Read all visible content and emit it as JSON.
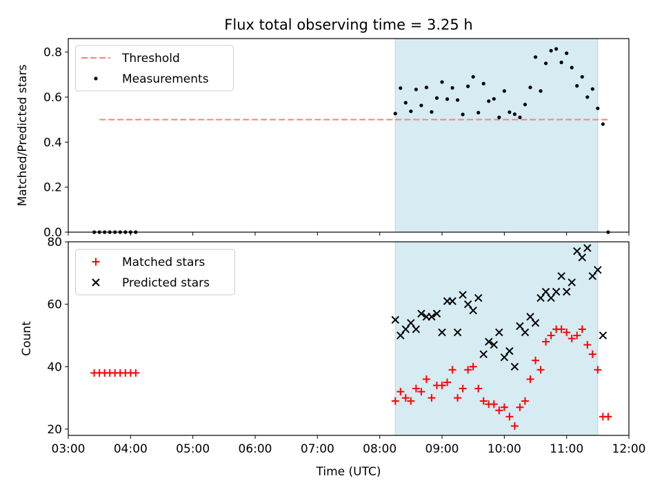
{
  "title": "Flux total observing time = 3.25 h",
  "colors": {
    "threshold": "#ff7f7f",
    "measurements": "#000000",
    "matched": "#ff0000",
    "predicted": "#000000",
    "shade": "#add8e6"
  },
  "chart_data": [
    {
      "type": "scatter",
      "ylabel": "Matched/Predicted stars",
      "xlim": [
        "03:00",
        "12:00"
      ],
      "ylim": [
        0,
        0.86
      ],
      "yticks": [
        "0.0",
        "0.2",
        "0.4",
        "0.6",
        "0.8"
      ],
      "shaded_span": [
        "08:15",
        "11:30"
      ],
      "legend_placement": "upper-left",
      "series": [
        {
          "name": "Threshold",
          "style": "dashed-line",
          "x": [
            "03:30",
            "11:40"
          ],
          "y": [
            0.5,
            0.5
          ]
        },
        {
          "name": "Measurements",
          "style": "dot",
          "points": [
            [
              "03:25",
              0
            ],
            [
              "03:30",
              0
            ],
            [
              "03:35",
              0
            ],
            [
              "03:40",
              0
            ],
            [
              "03:45",
              0
            ],
            [
              "03:50",
              0
            ],
            [
              "03:55",
              0
            ],
            [
              "04:00",
              0
            ],
            [
              "04:05",
              0
            ],
            [
              "08:15",
              0.527
            ],
            [
              "08:20",
              0.64
            ],
            [
              "08:25",
              0.575
            ],
            [
              "08:30",
              0.537
            ],
            [
              "08:35",
              0.634
            ],
            [
              "08:40",
              0.563
            ],
            [
              "08:45",
              0.643
            ],
            [
              "08:50",
              0.534
            ],
            [
              "08:55",
              0.596
            ],
            [
              "09:00",
              0.667
            ],
            [
              "09:05",
              0.591
            ],
            [
              "09:10",
              0.641
            ],
            [
              "09:15",
              0.587
            ],
            [
              "09:20",
              0.523
            ],
            [
              "09:25",
              0.648
            ],
            [
              "09:30",
              0.69
            ],
            [
              "09:35",
              0.531
            ],
            [
              "09:40",
              0.66
            ],
            [
              "09:45",
              0.582
            ],
            [
              "09:50",
              0.592
            ],
            [
              "09:55",
              0.51
            ],
            [
              "10:00",
              0.627
            ],
            [
              "10:05",
              0.533
            ],
            [
              "10:10",
              0.524
            ],
            [
              "10:15",
              0.51
            ],
            [
              "10:20",
              0.567
            ],
            [
              "10:25",
              0.643
            ],
            [
              "10:30",
              0.778
            ],
            [
              "10:35",
              0.627
            ],
            [
              "10:40",
              0.75
            ],
            [
              "10:45",
              0.806
            ],
            [
              "10:50",
              0.814
            ],
            [
              "10:55",
              0.754
            ],
            [
              "11:00",
              0.795
            ],
            [
              "11:05",
              0.731
            ],
            [
              "11:10",
              0.65
            ],
            [
              "11:15",
              0.69
            ],
            [
              "11:20",
              0.6
            ],
            [
              "11:25",
              0.636
            ],
            [
              "11:30",
              0.55
            ],
            [
              "11:35",
              0.48
            ],
            [
              "11:40",
              0
            ]
          ]
        }
      ]
    },
    {
      "type": "scatter",
      "xlabel": "Time (UTC)",
      "ylabel": "Count",
      "xlim": [
        "03:00",
        "12:00"
      ],
      "ylim": [
        18,
        80
      ],
      "xticks": [
        "03:00",
        "04:00",
        "05:00",
        "06:00",
        "07:00",
        "08:00",
        "09:00",
        "10:00",
        "11:00",
        "12:00"
      ],
      "yticks": [
        "20",
        "40",
        "60",
        "80"
      ],
      "shaded_span": [
        "08:15",
        "11:30"
      ],
      "legend_placement": "upper-left",
      "series": [
        {
          "name": "Matched stars",
          "style": "plus",
          "points": [
            [
              "03:25",
              38
            ],
            [
              "03:30",
              38
            ],
            [
              "03:35",
              38
            ],
            [
              "03:40",
              38
            ],
            [
              "03:45",
              38
            ],
            [
              "03:50",
              38
            ],
            [
              "03:55",
              38
            ],
            [
              "04:00",
              38
            ],
            [
              "04:05",
              38
            ],
            [
              "08:15",
              29
            ],
            [
              "08:20",
              32
            ],
            [
              "08:25",
              30
            ],
            [
              "08:30",
              29
            ],
            [
              "08:35",
              33
            ],
            [
              "08:40",
              32
            ],
            [
              "08:45",
              36
            ],
            [
              "08:50",
              30
            ],
            [
              "08:55",
              34
            ],
            [
              "09:00",
              34
            ],
            [
              "09:05",
              35
            ],
            [
              "09:10",
              39
            ],
            [
              "09:15",
              30
            ],
            [
              "09:20",
              33
            ],
            [
              "09:25",
              39
            ],
            [
              "09:30",
              40
            ],
            [
              "09:35",
              33
            ],
            [
              "09:40",
              29
            ],
            [
              "09:45",
              28
            ],
            [
              "09:50",
              28
            ],
            [
              "09:55",
              26
            ],
            [
              "10:00",
              27
            ],
            [
              "10:05",
              24
            ],
            [
              "10:10",
              21
            ],
            [
              "10:15",
              27
            ],
            [
              "10:20",
              29
            ],
            [
              "10:25",
              36
            ],
            [
              "10:30",
              42
            ],
            [
              "10:35",
              39
            ],
            [
              "10:40",
              48
            ],
            [
              "10:45",
              50
            ],
            [
              "10:50",
              52
            ],
            [
              "10:55",
              52
            ],
            [
              "11:00",
              51
            ],
            [
              "11:05",
              49
            ],
            [
              "11:10",
              50
            ],
            [
              "11:15",
              52
            ],
            [
              "11:20",
              47
            ],
            [
              "11:25",
              44
            ],
            [
              "11:30",
              39
            ],
            [
              "11:35",
              24
            ],
            [
              "11:40",
              24
            ]
          ]
        },
        {
          "name": "Predicted stars",
          "style": "x",
          "points": [
            [
              "08:15",
              55
            ],
            [
              "08:20",
              50
            ],
            [
              "08:25",
              52
            ],
            [
              "08:30",
              54
            ],
            [
              "08:35",
              52
            ],
            [
              "08:40",
              57
            ],
            [
              "08:45",
              56
            ],
            [
              "08:50",
              56
            ],
            [
              "08:55",
              57
            ],
            [
              "09:00",
              51
            ],
            [
              "09:05",
              61
            ],
            [
              "09:10",
              61
            ],
            [
              "09:15",
              51
            ],
            [
              "09:20",
              63
            ],
            [
              "09:25",
              60
            ],
            [
              "09:30",
              58
            ],
            [
              "09:35",
              62
            ],
            [
              "09:40",
              44
            ],
            [
              "09:45",
              48
            ],
            [
              "09:50",
              47
            ],
            [
              "09:55",
              51
            ],
            [
              "10:00",
              43
            ],
            [
              "10:05",
              45
            ],
            [
              "10:10",
              40
            ],
            [
              "10:15",
              53
            ],
            [
              "10:20",
              51
            ],
            [
              "10:25",
              56
            ],
            [
              "10:30",
              54
            ],
            [
              "10:35",
              62
            ],
            [
              "10:40",
              64
            ],
            [
              "10:45",
              62
            ],
            [
              "10:50",
              64
            ],
            [
              "10:55",
              69
            ],
            [
              "11:00",
              64
            ],
            [
              "11:05",
              67
            ],
            [
              "11:10",
              77
            ],
            [
              "11:15",
              75
            ],
            [
              "11:20",
              78
            ],
            [
              "11:25",
              69
            ],
            [
              "11:30",
              71
            ],
            [
              "11:35",
              50
            ]
          ]
        }
      ]
    }
  ]
}
